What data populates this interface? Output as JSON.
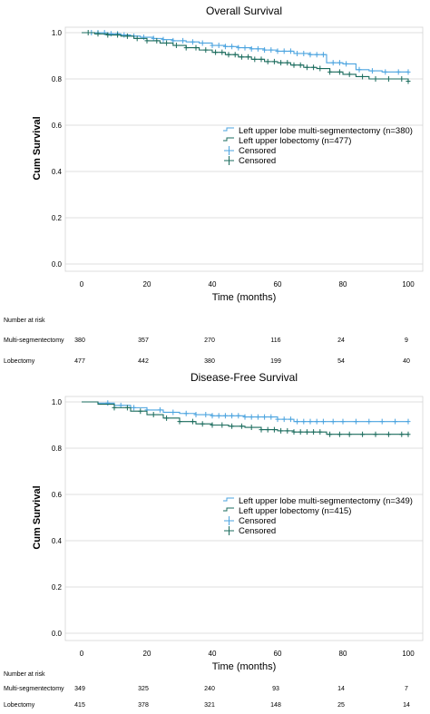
{
  "colors": {
    "multi_segmentectomy": "#4aa3df",
    "lobectomy": "#1a6b5c",
    "grid": "#d4d4d4",
    "axis": "#000000"
  },
  "chart_data": [
    {
      "type": "line",
      "title": "Overall Survival",
      "xlabel": "Time (months)",
      "ylabel": "Cum Survival",
      "xlim": [
        0,
        100
      ],
      "ylim": [
        0.0,
        1.0
      ],
      "xticks": [
        0,
        20,
        40,
        60,
        80,
        100
      ],
      "yticks": [
        0.0,
        0.2,
        0.4,
        0.6,
        0.8,
        1.0
      ],
      "grid": "horizontal",
      "legend_position": "right",
      "series": [
        {
          "name": "Left upper lobe multi-segmentectomy (n=380)",
          "color_key": "multi_segmentectomy",
          "x": [
            0,
            3,
            8,
            12,
            15,
            18,
            22,
            25,
            28,
            32,
            36,
            40,
            44,
            48,
            52,
            56,
            60,
            65,
            70,
            75,
            80,
            84,
            88,
            92,
            96,
            100
          ],
          "y": [
            1.0,
            1.0,
            0.995,
            0.99,
            0.985,
            0.98,
            0.975,
            0.97,
            0.965,
            0.96,
            0.955,
            0.945,
            0.94,
            0.935,
            0.93,
            0.925,
            0.92,
            0.91,
            0.905,
            0.87,
            0.865,
            0.84,
            0.835,
            0.83,
            0.83,
            0.83
          ],
          "censored_x": [
            3,
            5,
            7,
            9,
            11,
            13,
            16,
            19,
            22,
            25,
            28,
            31,
            34,
            37,
            40,
            42,
            44,
            46,
            48,
            50,
            52,
            54,
            56,
            58,
            60,
            62,
            64,
            66,
            68,
            70,
            72,
            74,
            77,
            79,
            81,
            85,
            89,
            93,
            97,
            100
          ]
        },
        {
          "name": "Left upper lobectomy (n=477)",
          "color_key": "lobectomy",
          "x": [
            0,
            4,
            8,
            12,
            16,
            20,
            24,
            28,
            32,
            36,
            40,
            44,
            48,
            52,
            56,
            60,
            64,
            68,
            72,
            76,
            80,
            84,
            88,
            92,
            96,
            100
          ],
          "y": [
            1.0,
            0.995,
            0.99,
            0.985,
            0.975,
            0.965,
            0.955,
            0.945,
            0.935,
            0.925,
            0.915,
            0.905,
            0.895,
            0.885,
            0.875,
            0.87,
            0.86,
            0.85,
            0.845,
            0.83,
            0.82,
            0.81,
            0.8,
            0.8,
            0.8,
            0.79
          ],
          "censored_x": [
            2,
            5,
            8,
            11,
            14,
            17,
            20,
            23,
            26,
            29,
            32,
            35,
            38,
            41,
            43,
            45,
            47,
            49,
            51,
            53,
            55,
            57,
            59,
            61,
            63,
            65,
            67,
            69,
            71,
            73,
            76,
            79,
            82,
            86,
            90,
            94,
            98,
            100
          ]
        }
      ],
      "legend_entries": [
        "Left upper lobe multi-segmentectomy (n=380)",
        "Left upper lobectomy (n=477)",
        "Censored",
        "Censored"
      ],
      "risk_table": {
        "header": "Number at risk",
        "rows": [
          {
            "label": "Multi-segmentectomy",
            "values": [
              "380",
              "357",
              "270",
              "116",
              "24",
              "9"
            ]
          },
          {
            "label": "Lobectomy",
            "values": [
              "477",
              "442",
              "380",
              "199",
              "54",
              "40"
            ]
          }
        ]
      }
    },
    {
      "type": "line",
      "title": "Disease-Free Survival",
      "xlabel": "Time (months)",
      "ylabel": "Cum Survival",
      "xlim": [
        0,
        100
      ],
      "ylim": [
        0.0,
        1.0
      ],
      "xticks": [
        0,
        20,
        40,
        60,
        80,
        100
      ],
      "yticks": [
        0.0,
        0.2,
        0.4,
        0.6,
        0.8,
        1.0
      ],
      "grid": "horizontal",
      "legend_position": "right",
      "series": [
        {
          "name": "Left upper lobe multi-segmentectomy (n=349)",
          "color_key": "multi_segmentectomy",
          "x": [
            0,
            5,
            10,
            15,
            20,
            25,
            30,
            35,
            40,
            45,
            50,
            55,
            60,
            65,
            70,
            75,
            80,
            85,
            90,
            95,
            100
          ],
          "y": [
            1.0,
            0.995,
            0.985,
            0.975,
            0.965,
            0.955,
            0.95,
            0.945,
            0.94,
            0.94,
            0.935,
            0.935,
            0.925,
            0.915,
            0.915,
            0.915,
            0.915,
            0.915,
            0.915,
            0.915,
            0.915
          ],
          "censored_x": [
            8,
            12,
            16,
            20,
            24,
            28,
            32,
            35,
            38,
            40,
            42,
            44,
            46,
            48,
            50,
            52,
            54,
            56,
            58,
            60,
            62,
            64,
            66,
            68,
            70,
            72,
            74,
            77,
            80,
            84,
            88,
            92,
            96,
            100
          ]
        },
        {
          "name": "Left upper lobectomy (n=415)",
          "color_key": "lobectomy",
          "x": [
            0,
            5,
            10,
            15,
            20,
            25,
            30,
            35,
            40,
            45,
            50,
            55,
            60,
            65,
            70,
            75,
            80,
            85,
            90,
            95,
            100
          ],
          "y": [
            1.0,
            0.99,
            0.975,
            0.96,
            0.945,
            0.93,
            0.915,
            0.905,
            0.9,
            0.895,
            0.89,
            0.88,
            0.875,
            0.87,
            0.87,
            0.86,
            0.86,
            0.86,
            0.86,
            0.86,
            0.86
          ],
          "censored_x": [
            10,
            14,
            18,
            22,
            26,
            30,
            34,
            37,
            40,
            43,
            46,
            49,
            52,
            55,
            57,
            59,
            61,
            63,
            65,
            67,
            69,
            71,
            73,
            76,
            79,
            82,
            86,
            90,
            94,
            98,
            100
          ]
        }
      ],
      "legend_entries": [
        "Left upper lobe multi-segmentectomy (n=349)",
        "Left upper lobectomy (n=415)",
        "Censored",
        "Censored"
      ],
      "risk_table": {
        "header": "Number at risk",
        "rows": [
          {
            "label": "Multi-segmentectomy",
            "values": [
              "349",
              "325",
              "240",
              "93",
              "14",
              "7"
            ]
          },
          {
            "label": "Lobectomy",
            "values": [
              "415",
              "378",
              "321",
              "148",
              "25",
              "14"
            ]
          }
        ]
      }
    }
  ]
}
